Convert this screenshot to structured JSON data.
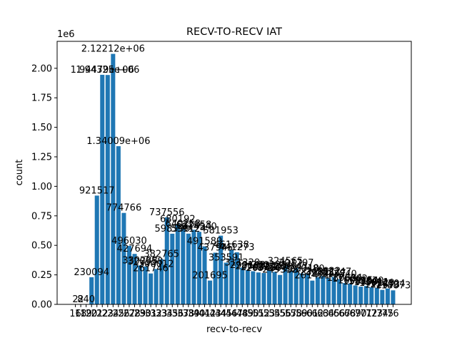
{
  "chart_data": {
    "type": "bar",
    "title": "RECV-TO-RECV IAT",
    "x_label": "recv-to-recv",
    "y_label": "count",
    "y_offset_label": "1e6",
    "categories": [
      "16",
      "18",
      "19",
      "20",
      "21",
      "22",
      "23",
      "24",
      "25",
      "26",
      "27",
      "28",
      "29",
      "30",
      "31",
      "32",
      "33",
      "34",
      "35",
      "36",
      "37",
      "38",
      "39",
      "40",
      "41",
      "42",
      "43",
      "44",
      "45",
      "46",
      "47",
      "48",
      "49",
      "50",
      "51",
      "52",
      "53",
      "54",
      "55",
      "56",
      "57",
      "58",
      "59",
      "60",
      "61",
      "62",
      "63",
      "64",
      "65",
      "66",
      "67",
      "68",
      "69",
      "70",
      "71",
      "72",
      "73",
      "74",
      "75",
      "76"
    ],
    "values": [
      2,
      2,
      840,
      230094,
      921517,
      1944790,
      1943250,
      2122120,
      1340090,
      774766,
      496030,
      427694,
      330288,
      320958,
      261746,
      300012,
      382765,
      737556,
      598590,
      680192,
      640258,
      599124,
      632058,
      614540,
      491589,
      201695,
      437945,
      581953,
      353591,
      461638,
      441273,
      311320,
      290148,
      280625,
      270332,
      265400,
      290221,
      275806,
      249312,
      324565,
      280941,
      307707,
      262310,
      260480,
      201421,
      230811,
      240022,
      220567,
      232247,
      213840,
      180624,
      176002,
      160215,
      150290,
      155870,
      145011,
      140220,
      122673,
      134304,
      118873
    ],
    "value_labels": [
      "2",
      "2",
      "840",
      "230094",
      "921517",
      "1.94479e+06",
      "1.94325e+06",
      "2.12212e+06",
      "1.34009e+06",
      "774766",
      "496030",
      "427694",
      "330288",
      "320958",
      "261746",
      "300012",
      "382765",
      "737556",
      "598590",
      "680192",
      "640258",
      "599124",
      "632058",
      "614540",
      "491589",
      "201695",
      "437945",
      "581953",
      "353591",
      "461638",
      "441273",
      "311320",
      "290148",
      "280625",
      "270332",
      "265400",
      "290221",
      "275806",
      "249312",
      "324565",
      "280941",
      "307707",
      "262310",
      "260480",
      "201421",
      "230811",
      "240022",
      "220567",
      "232247",
      "213840",
      "180624",
      "176002",
      "160215",
      "150290",
      "155870",
      "145011",
      "140220",
      "122673",
      "134304",
      "118873"
    ],
    "color": "#1f77b4",
    "ylim": [
      0,
      2228226
    ],
    "yticks": [
      {
        "value": 0,
        "label": "0.00"
      },
      {
        "value": 250000,
        "label": "0.25"
      },
      {
        "value": 500000,
        "label": "0.50"
      },
      {
        "value": 750000,
        "label": "0.75"
      },
      {
        "value": 1000000,
        "label": "1.00"
      },
      {
        "value": 1250000,
        "label": "1.25"
      },
      {
        "value": 1500000,
        "label": "1.50"
      },
      {
        "value": 1750000,
        "label": "1.75"
      },
      {
        "value": 2000000,
        "label": "2.00"
      }
    ]
  }
}
